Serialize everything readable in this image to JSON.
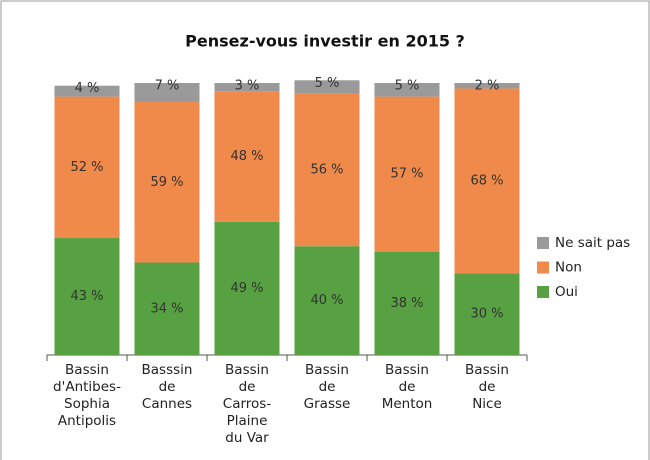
{
  "chart_data": {
    "type": "stacked_bar",
    "title": "Pensez-vous investir en 2015 ?",
    "categories": [
      "Bassin\nd'Antibes-\nSophia\nAntipolis",
      "Basssin\nde\nCannes",
      "Bassin\nde\nCarros-\nPlaine\ndu Var",
      "Bassin\nde\nGrasse",
      "Bassin\nde\nMenton",
      "Bassin\nde\nNice"
    ],
    "series": [
      {
        "name": "Oui",
        "color": "#58a142",
        "values": [
          43,
          34,
          49,
          40,
          38,
          30
        ],
        "value_labels": [
          "43 %",
          "34 %",
          "49 %",
          "40 %",
          "38 %",
          "30 %"
        ]
      },
      {
        "name": "Non",
        "color": "#f08a4b",
        "values": [
          52,
          59,
          48,
          56,
          57,
          68
        ],
        "value_labels": [
          "52 %",
          "59 %",
          "48 %",
          "56 %",
          "57 %",
          "68 %"
        ]
      },
      {
        "name": "Ne sait pas",
        "color": "#9a9a9a",
        "values": [
          4,
          7,
          3,
          5,
          5,
          2
        ],
        "value_labels": [
          "4 %",
          "7 %",
          "3 %",
          "5 %",
          "5 %",
          "2 %"
        ]
      }
    ],
    "ylim": [
      0,
      100
    ],
    "legend": "right"
  }
}
